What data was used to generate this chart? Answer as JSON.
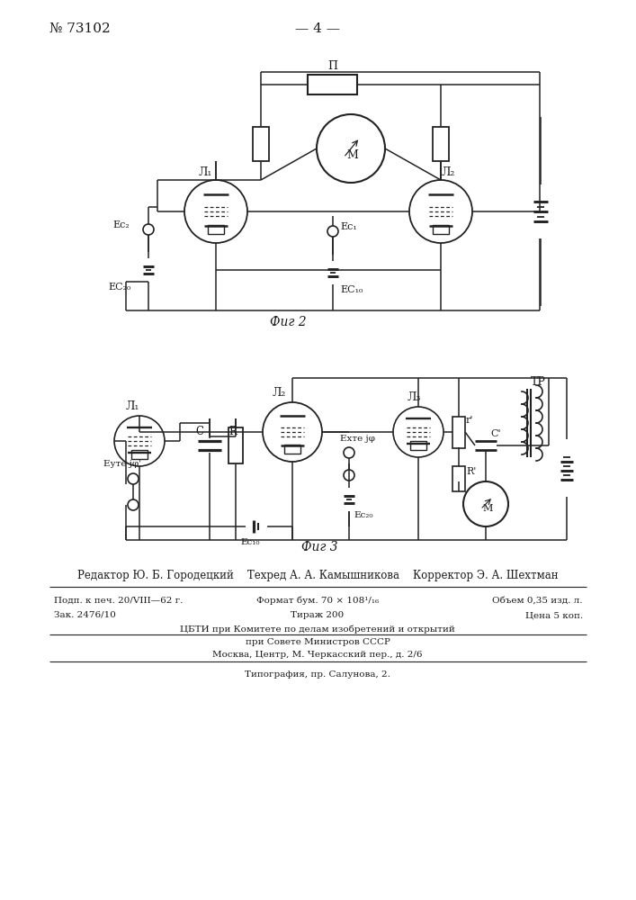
{
  "page_number_left": "№ 73102",
  "page_number_center": "— 4 —",
  "fig2_caption": "Фиг 2",
  "fig3_caption": "Фиг 3",
  "editor_line": "Редактор Ю. Б. Городецкий    Техред А. А. Камышникова    Корректор Э. А. Шехтман",
  "info_line1_left": "Подп. к печ. 20/VIII—62 г.",
  "info_line1_center": "Формат бум. 70 × 108¹/₁₆",
  "info_line1_right": "Объем 0,35 изд. л.",
  "info_line2_left": "Зак. 2476/10",
  "info_line2_center": "Тираж 200",
  "info_line2_right": "Цена 5 коп.",
  "org_line1": "ЦБТИ при Комитете по делам изобретений и открытий",
  "org_line2": "при Совете Министров СССР",
  "org_line3": "Москва, Центр, М. Черкасский пер., д. 2/6",
  "print_line": "Типография, пр. Салунова, 2.",
  "bg_color": "#ffffff",
  "text_color": "#1a1a1a",
  "line_color": "#222222"
}
